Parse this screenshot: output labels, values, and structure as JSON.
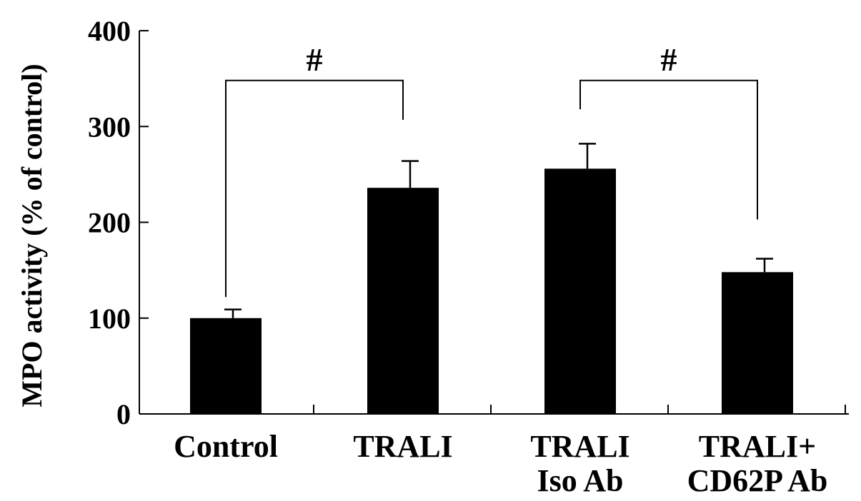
{
  "chart_data": {
    "type": "bar",
    "title": "",
    "xlabel": "",
    "ylabel": "MPO activity (% of control)",
    "ylim": [
      0,
      400
    ],
    "yticks": [
      0,
      100,
      200,
      300,
      400
    ],
    "categories": [
      [
        "Control"
      ],
      [
        "TRALI"
      ],
      [
        "TRALI",
        "Iso Ab"
      ],
      [
        "TRALI+",
        "CD62P Ab"
      ]
    ],
    "values": [
      100,
      236,
      256,
      148
    ],
    "errors": [
      9,
      28,
      26,
      14
    ],
    "bar_color": "#000000",
    "grid": false,
    "legend": "none",
    "significance": [
      {
        "from": 0,
        "to": 1,
        "label": "#",
        "bracket_y": 348,
        "left_leg_y": 122,
        "right_leg_y": 307
      },
      {
        "from": 2,
        "to": 3,
        "label": "#",
        "bracket_y": 348,
        "left_leg_y": 318,
        "right_leg_y": 203
      }
    ]
  }
}
